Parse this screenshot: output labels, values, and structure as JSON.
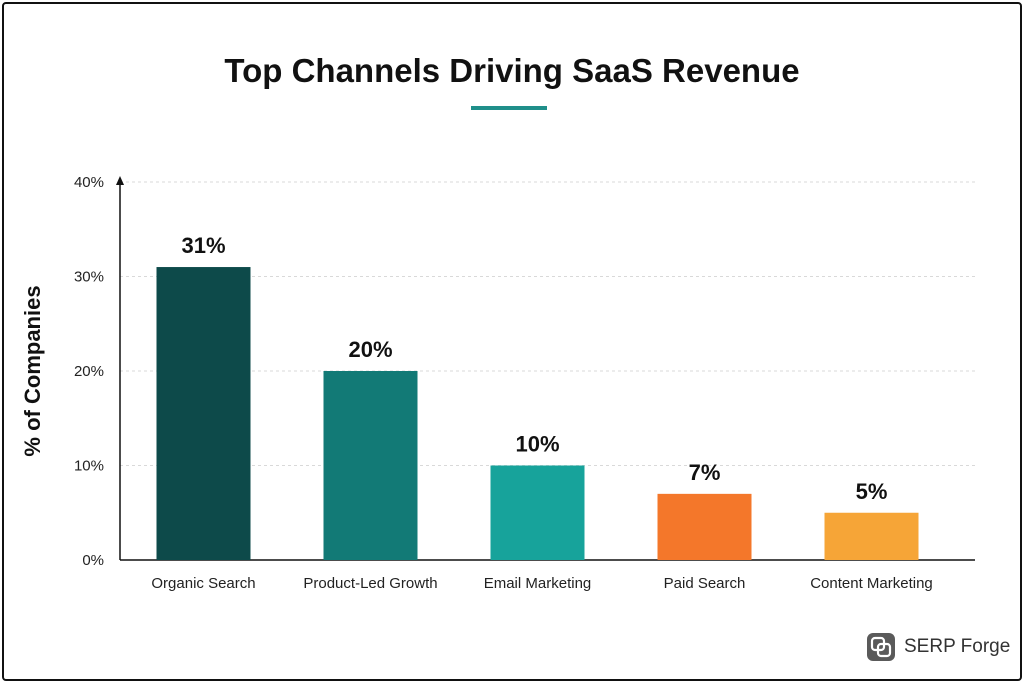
{
  "colors": {
    "accent": "#1f8f8a",
    "bars": [
      "#0d4a4a",
      "#127a76",
      "#17a39b",
      "#f4772a",
      "#f6a537"
    ]
  },
  "brand": {
    "name": "SERP Forge",
    "icon": "serp-forge-logo-icon"
  },
  "chart_data": {
    "type": "bar",
    "title": "Top Channels Driving SaaS Revenue",
    "xlabel": "",
    "ylabel": "% of Companies",
    "categories": [
      "Organic Search",
      "Product-Led Growth",
      "Email Marketing",
      "Paid Search",
      "Content Marketing"
    ],
    "values": [
      31,
      20,
      10,
      7,
      5
    ],
    "value_labels": [
      "31%",
      "20%",
      "10%",
      "7%",
      "5%"
    ],
    "ylim": [
      0,
      40
    ],
    "yticks": [
      0,
      10,
      20,
      30,
      40
    ],
    "ytick_labels": [
      "0%",
      "10%",
      "20%",
      "30%",
      "40%"
    ],
    "grid": true
  }
}
